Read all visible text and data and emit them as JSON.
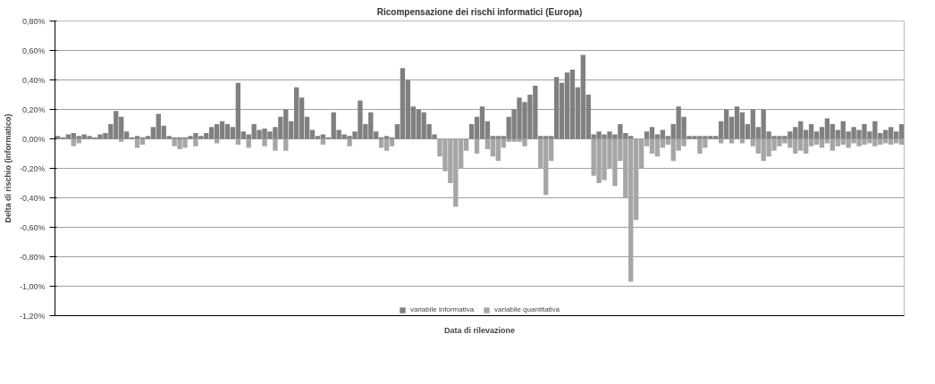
{
  "chart_data": {
    "type": "bar",
    "title": "Ricompensazione dei rischi informatici (Europa)",
    "xlabel": "Data di rilevazione",
    "ylabel": "Delta di rischio (informatico)",
    "categories": [
      null,
      null,
      null,
      null,
      null,
      null,
      null,
      null,
      null,
      null,
      null,
      null,
      null,
      null,
      null,
      null,
      null,
      null,
      null,
      null,
      null,
      null,
      null,
      null,
      null,
      null,
      null,
      null,
      null,
      null,
      null,
      null,
      null,
      null,
      null,
      null,
      null,
      null,
      null,
      null,
      null,
      null,
      null,
      null,
      null,
      null,
      null,
      null,
      null,
      null,
      null,
      null,
      null,
      null,
      null,
      null,
      null,
      null,
      null,
      null,
      null,
      null,
      null,
      null,
      null,
      null,
      null,
      null,
      null,
      null,
      null,
      null,
      null,
      null,
      null,
      null,
      null,
      null,
      null,
      null,
      null,
      null,
      null,
      null,
      null,
      null,
      null,
      null,
      null,
      null,
      null,
      null,
      null,
      null,
      null,
      null,
      null,
      null,
      null,
      null,
      null,
      null,
      null,
      null,
      null,
      null,
      null,
      null,
      null,
      null,
      null,
      null,
      null,
      null,
      null,
      null,
      null,
      null,
      null,
      null,
      null,
      null,
      null,
      null,
      null,
      null,
      null,
      null,
      null,
      null,
      null,
      null,
      null,
      null,
      null,
      null,
      null,
      null,
      null,
      null,
      null,
      null,
      null,
      null,
      null,
      null,
      null,
      null,
      null,
      null,
      null,
      null,
      null,
      null,
      null,
      null,
      null,
      null,
      null,
      null
    ],
    "series": [
      {
        "name": "variabile informativa",
        "color": "#808080",
        "values": [
          0.02,
          0.01,
          0.03,
          0.04,
          0.02,
          0.03,
          0.02,
          0.01,
          0.03,
          0.04,
          0.1,
          0.19,
          0.15,
          0.05,
          0.01,
          0.02,
          0.01,
          0.02,
          0.08,
          0.17,
          0.09,
          0.02,
          0.01,
          0.01,
          0.01,
          0.02,
          0.04,
          0.02,
          0.04,
          0.08,
          0.1,
          0.12,
          0.1,
          0.08,
          0.38,
          0.05,
          0.03,
          0.1,
          0.06,
          0.07,
          0.05,
          0.08,
          0.15,
          0.2,
          0.12,
          0.35,
          0.28,
          0.15,
          0.06,
          0.02,
          0.03,
          0.01,
          0.18,
          0.06,
          0.03,
          0.02,
          0.05,
          0.26,
          0.1,
          0.18,
          0.05,
          0.01,
          0.02,
          0.01,
          0.1,
          0.48,
          0.4,
          0.22,
          0.2,
          0.18,
          0.1,
          0.03,
          null,
          null,
          null,
          null,
          null,
          null,
          0.1,
          0.15,
          0.22,
          0.12,
          0.02,
          0.02,
          0.02,
          0.15,
          0.2,
          0.28,
          0.25,
          0.3,
          0.36,
          0.02,
          0.02,
          0.02,
          0.42,
          0.38,
          0.45,
          0.47,
          0.35,
          0.57,
          0.3,
          0.03,
          0.05,
          0.03,
          0.05,
          0.03,
          0.1,
          0.04,
          0.02,
          null,
          null,
          0.05,
          0.08,
          0.03,
          0.06,
          0.02,
          0.1,
          0.22,
          0.15,
          0.02,
          0.02,
          0.02,
          0.02,
          0.02,
          0.02,
          0.12,
          0.2,
          0.15,
          0.22,
          0.18,
          0.1,
          0.2,
          0.08,
          0.2,
          0.05,
          0.02,
          0.02,
          0.02,
          0.05,
          0.08,
          0.12,
          0.06,
          0.1,
          0.05,
          0.08,
          0.14,
          0.1,
          0.06,
          0.12,
          0.05,
          0.08,
          0.06,
          0.1,
          0.05,
          0.12,
          0.04,
          0.06,
          0.08,
          0.05,
          0.1
        ]
      },
      {
        "name": "variabile quantitativa",
        "color": "#a6a6a6",
        "values": [
          null,
          null,
          null,
          -0.05,
          -0.03,
          null,
          null,
          null,
          null,
          null,
          null,
          null,
          -0.02,
          null,
          null,
          -0.06,
          -0.04,
          null,
          null,
          null,
          null,
          null,
          -0.05,
          -0.07,
          -0.06,
          null,
          -0.05,
          null,
          null,
          null,
          -0.03,
          null,
          null,
          null,
          -0.04,
          null,
          -0.06,
          null,
          null,
          -0.05,
          null,
          -0.08,
          null,
          -0.08,
          null,
          null,
          null,
          null,
          null,
          null,
          -0.04,
          null,
          null,
          null,
          null,
          -0.05,
          null,
          null,
          null,
          null,
          null,
          -0.06,
          -0.08,
          -0.05,
          null,
          null,
          null,
          null,
          null,
          null,
          null,
          null,
          -0.12,
          -0.22,
          -0.3,
          -0.46,
          -0.2,
          -0.08,
          null,
          -0.1,
          null,
          -0.07,
          -0.12,
          -0.15,
          -0.06,
          -0.02,
          -0.02,
          -0.02,
          -0.05,
          null,
          null,
          -0.2,
          -0.38,
          -0.15,
          null,
          null,
          null,
          null,
          null,
          null,
          null,
          -0.25,
          -0.3,
          -0.28,
          -0.2,
          -0.32,
          -0.15,
          -0.4,
          -0.97,
          -0.55,
          -0.2,
          -0.05,
          -0.1,
          -0.12,
          -0.06,
          -0.04,
          -0.15,
          -0.08,
          -0.05,
          null,
          null,
          -0.1,
          -0.06,
          null,
          null,
          -0.03,
          null,
          -0.03,
          null,
          -0.03,
          null,
          -0.05,
          -0.1,
          -0.15,
          -0.12,
          -0.08,
          -0.05,
          -0.03,
          -0.06,
          -0.1,
          -0.08,
          -0.1,
          -0.05,
          -0.04,
          -0.06,
          -0.03,
          -0.08,
          -0.05,
          -0.04,
          -0.06,
          -0.03,
          -0.05,
          -0.04,
          -0.03,
          -0.05,
          -0.04,
          -0.03,
          -0.04,
          -0.03,
          -0.04
        ]
      }
    ],
    "ylim": [
      -1.2,
      0.8
    ],
    "yticks": [
      {
        "value": -1.2,
        "label": "-1,20%"
      },
      {
        "value": -1.0,
        "label": "-1,00%"
      },
      {
        "value": -0.8,
        "label": "-0,80%"
      },
      {
        "value": -0.6,
        "label": "-0,60%"
      },
      {
        "value": -0.4,
        "label": "-0,40%"
      },
      {
        "value": -0.2,
        "label": "-0,20%"
      },
      {
        "value": 0,
        "label": "0,00%"
      },
      {
        "value": 0.2,
        "label": "0,20%"
      },
      {
        "value": 0.4,
        "label": "0,40%"
      },
      {
        "value": 0.6,
        "label": "0,60%"
      },
      {
        "value": 0.8,
        "label": "0,80%"
      }
    ],
    "grid": "y",
    "legend": "bottom",
    "tick_labels": "y"
  }
}
